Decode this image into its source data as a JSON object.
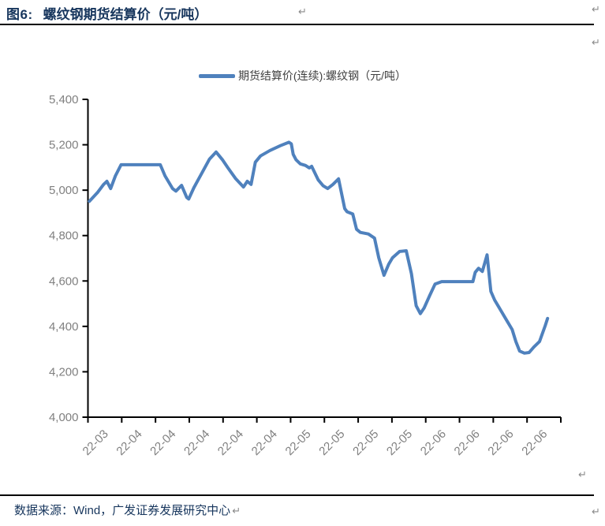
{
  "page": {
    "paragraph_mark": "↵"
  },
  "header": {
    "figure_label": "图6:",
    "title": "螺纹钢期货结算价（元/吨）"
  },
  "footer": {
    "source_note": "数据来源：Wind，广发证券发展研究中心"
  },
  "chart_data": {
    "type": "line",
    "title": "",
    "legend_position": "top-center",
    "grid": false,
    "colors": {
      "line": "#4F81BD",
      "axis": "#000000",
      "tick_label": "#808080"
    },
    "legend": [
      {
        "label": "期货结算价(连续):螺纹钢（元/吨）",
        "color": "#4F81BD"
      }
    ],
    "ylabel": "",
    "xlabel": "",
    "ylim": [
      4000,
      5400
    ],
    "y_ticks": [
      {
        "value": 5400,
        "label": "5,400"
      },
      {
        "value": 5200,
        "label": "5,200"
      },
      {
        "value": 5000,
        "label": "5,000"
      },
      {
        "value": 4800,
        "label": "4,800"
      },
      {
        "value": 4600,
        "label": "4,600"
      },
      {
        "value": 4400,
        "label": "4,400"
      },
      {
        "value": 4200,
        "label": "4,200"
      },
      {
        "value": 4000,
        "label": "4,000"
      }
    ],
    "x_tick_labels": [
      "22-03",
      "22-04",
      "22-04",
      "22-04",
      "22-04",
      "22-04",
      "22-05",
      "22-05",
      "22-05",
      "22-05",
      "22-06",
      "22-06",
      "22-06",
      "22-06"
    ],
    "series": [
      {
        "name": "期货结算价(连续):螺纹钢（元/吨）",
        "points_format": "[x_fraction_along_time_axis, settlement_price_yuan_per_ton]",
        "points": [
          [
            0.003,
            4951
          ],
          [
            0.02,
            4989
          ],
          [
            0.033,
            5025
          ],
          [
            0.04,
            5039
          ],
          [
            0.048,
            5007
          ],
          [
            0.058,
            5063
          ],
          [
            0.07,
            5112
          ],
          [
            0.153,
            5112
          ],
          [
            0.163,
            5063
          ],
          [
            0.179,
            5007
          ],
          [
            0.186,
            4996
          ],
          [
            0.198,
            5021
          ],
          [
            0.209,
            4968
          ],
          [
            0.213,
            4961
          ],
          [
            0.224,
            5011
          ],
          [
            0.241,
            5076
          ],
          [
            0.257,
            5137
          ],
          [
            0.271,
            5168
          ],
          [
            0.284,
            5135
          ],
          [
            0.296,
            5098
          ],
          [
            0.312,
            5052
          ],
          [
            0.329,
            5014
          ],
          [
            0.337,
            5039
          ],
          [
            0.345,
            5025
          ],
          [
            0.354,
            5123
          ],
          [
            0.365,
            5151
          ],
          [
            0.385,
            5175
          ],
          [
            0.407,
            5196
          ],
          [
            0.425,
            5211
          ],
          [
            0.43,
            5204
          ],
          [
            0.434,
            5158
          ],
          [
            0.44,
            5134
          ],
          [
            0.449,
            5116
          ],
          [
            0.46,
            5109
          ],
          [
            0.468,
            5098
          ],
          [
            0.473,
            5105
          ],
          [
            0.487,
            5045
          ],
          [
            0.497,
            5020
          ],
          [
            0.507,
            5007
          ],
          [
            0.518,
            5025
          ],
          [
            0.53,
            5050
          ],
          [
            0.543,
            4919
          ],
          [
            0.548,
            4905
          ],
          [
            0.56,
            4895
          ],
          [
            0.568,
            4828
          ],
          [
            0.576,
            4814
          ],
          [
            0.593,
            4807
          ],
          [
            0.606,
            4789
          ],
          [
            0.615,
            4702
          ],
          [
            0.626,
            4625
          ],
          [
            0.636,
            4674
          ],
          [
            0.644,
            4702
          ],
          [
            0.659,
            4730
          ],
          [
            0.673,
            4733
          ],
          [
            0.684,
            4632
          ],
          [
            0.689,
            4561
          ],
          [
            0.694,
            4491
          ],
          [
            0.703,
            4456
          ],
          [
            0.711,
            4481
          ],
          [
            0.723,
            4537
          ],
          [
            0.734,
            4586
          ],
          [
            0.748,
            4597
          ],
          [
            0.814,
            4597
          ],
          [
            0.819,
            4638
          ],
          [
            0.826,
            4656
          ],
          [
            0.834,
            4642
          ],
          [
            0.844,
            4715
          ],
          [
            0.852,
            4554
          ],
          [
            0.86,
            4516
          ],
          [
            0.872,
            4474
          ],
          [
            0.885,
            4428
          ],
          [
            0.897,
            4386
          ],
          [
            0.905,
            4333
          ],
          [
            0.913,
            4291
          ],
          [
            0.923,
            4282
          ],
          [
            0.933,
            4285
          ],
          [
            0.943,
            4309
          ],
          [
            0.955,
            4333
          ],
          [
            0.967,
            4403
          ],
          [
            0.972,
            4435
          ]
        ]
      }
    ]
  }
}
